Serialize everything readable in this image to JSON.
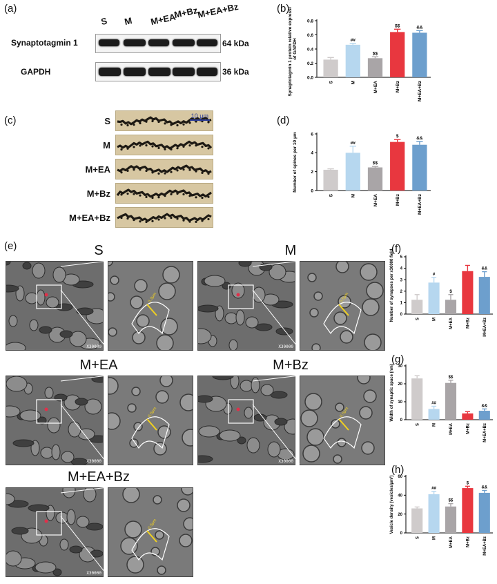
{
  "panels": {
    "a": "(a)",
    "b": "(b)",
    "c": "(c)",
    "d": "(d)",
    "e": "(e)",
    "f": "(f)",
    "g": "(g)",
    "h": "(h)"
  },
  "colors": {
    "S": "#cfcbcb",
    "M": "#b6d7ef",
    "M+EA": "#a9a5a7",
    "M+Bz": "#e8373f",
    "M+EA+Bz": "#6d9fcd"
  },
  "blot": {
    "lanes": [
      "S",
      "M",
      "M+EA",
      "M+Bz",
      "M+EA+Bz"
    ],
    "rows": [
      {
        "label": "Synaptotagmin 1",
        "kda": "64 kDa"
      },
      {
        "label": "GAPDH",
        "kda": "36 kDa"
      }
    ]
  },
  "spines": {
    "groups": [
      "S",
      "M",
      "M+EA",
      "M+Bz",
      "M+EA+Bz"
    ],
    "scale_bar": "10 μm"
  },
  "em": {
    "groups": [
      {
        "title": "S",
        "magnification": "X30000",
        "width_label": "0.3μm"
      },
      {
        "title": "M",
        "magnification": "X30000",
        "width_label": "0.5μm"
      },
      {
        "title": "M+EA",
        "magnification": "X30000",
        "width_label": "0.5μm"
      },
      {
        "title": "M+Bz",
        "magnification": "X30000",
        "width_label": "0.5μm"
      },
      {
        "title": "M+EA+Bz",
        "magnification": "X30000",
        "width_label": "0.5μm"
      }
    ]
  },
  "chart_data": [
    {
      "id": "b",
      "type": "bar",
      "categories": [
        "S",
        "M",
        "M+EA",
        "M+Bz",
        "M+EA+Bz"
      ],
      "values": [
        0.25,
        0.46,
        0.27,
        0.64,
        0.63
      ],
      "errors": [
        0.03,
        0.02,
        0.02,
        0.04,
        0.03
      ],
      "annotations": [
        "",
        "##",
        "$$",
        "$$",
        "&&"
      ],
      "ylabel": "Synaptotagmin 1 protein relative expression of GAPDH",
      "ylim": [
        0,
        0.8
      ],
      "yticks": [
        0.0,
        0.2,
        0.4,
        0.6,
        0.8
      ],
      "ytick_labels": [
        "0.0",
        "0.2",
        "0.4",
        "0.6",
        "0.8"
      ]
    },
    {
      "id": "d",
      "type": "bar",
      "categories": [
        "S",
        "M",
        "M+EA",
        "M+Bz",
        "M+EA+Bz"
      ],
      "values": [
        2.2,
        4.0,
        2.45,
        5.15,
        4.85
      ],
      "errors": [
        0.1,
        0.7,
        0.1,
        0.25,
        0.35
      ],
      "annotations": [
        "",
        "##",
        "$$",
        "$",
        "&&"
      ],
      "ylabel": "Number of spines per 10 μm",
      "ylim": [
        0,
        6
      ],
      "yticks": [
        0,
        2,
        4,
        6
      ],
      "ytick_labels": [
        "0",
        "2",
        "4",
        "6"
      ]
    },
    {
      "id": "f",
      "type": "bar",
      "categories": [
        "S",
        "M",
        "M+EA",
        "M+Bz",
        "M+EA+Bz"
      ],
      "values": [
        1.25,
        2.75,
        1.25,
        3.75,
        3.25
      ],
      "errors": [
        0.45,
        0.45,
        0.45,
        0.5,
        0.45
      ],
      "annotations": [
        "",
        "#",
        "$",
        "",
        "&&"
      ],
      "ylabel": "Number of synapses per x30000 field",
      "ylim": [
        0,
        5
      ],
      "yticks": [
        0,
        1,
        2,
        3,
        4,
        5
      ],
      "ytick_labels": [
        "0",
        "1",
        "2",
        "3",
        "4",
        "5"
      ]
    },
    {
      "id": "g",
      "type": "bar",
      "categories": [
        "S",
        "M",
        "M+EA",
        "M+Bz",
        "M+EA+Bz"
      ],
      "values": [
        23.0,
        6.0,
        20.5,
        3.5,
        5.0
      ],
      "errors": [
        1.5,
        1.5,
        1.5,
        1.0,
        1.0
      ],
      "annotations": [
        "",
        "##",
        "$$",
        "",
        "&&"
      ],
      "ylabel": "Width of synaptic space (nm)",
      "ylim": [
        0,
        30
      ],
      "yticks": [
        0,
        10,
        20,
        30
      ],
      "ytick_labels": [
        "0",
        "10",
        "20",
        "30"
      ]
    },
    {
      "id": "h",
      "type": "bar",
      "categories": [
        "S",
        "M",
        "M+EA",
        "M+Bz",
        "M+EA+Bz"
      ],
      "values": [
        26,
        41,
        28,
        47.5,
        42.5
      ],
      "errors": [
        1.5,
        3,
        3,
        2,
        2.5
      ],
      "annotations": [
        "",
        "##",
        "$$",
        "$",
        "&&"
      ],
      "ylabel": "Vesicle density (vesicles/μm²)",
      "ylim": [
        0,
        60
      ],
      "yticks": [
        0,
        20,
        40,
        60
      ],
      "ytick_labels": [
        "0",
        "20",
        "40",
        "60"
      ]
    }
  ]
}
